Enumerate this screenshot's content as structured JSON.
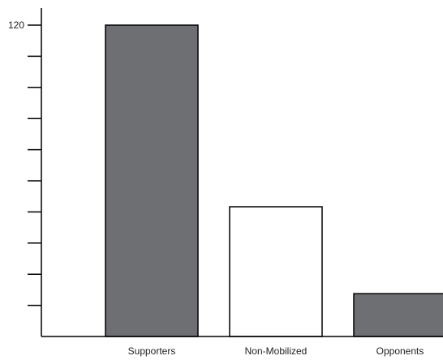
{
  "chart_data": {
    "type": "bar",
    "categories": [
      "Supporters",
      "Non-Mobilized",
      "Opponents"
    ],
    "values": [
      120,
      50,
      16.5
    ],
    "bar_fills": [
      "#6e6f72",
      "#ffffff",
      "#6e6f72"
    ],
    "ylim": [
      0,
      120
    ],
    "y_tick_step": 12,
    "y_tick_labels": [
      {
        "value": 120,
        "text": "120"
      }
    ],
    "title": "",
    "xlabel": "",
    "ylabel": "",
    "grid": false,
    "legend": "none"
  }
}
